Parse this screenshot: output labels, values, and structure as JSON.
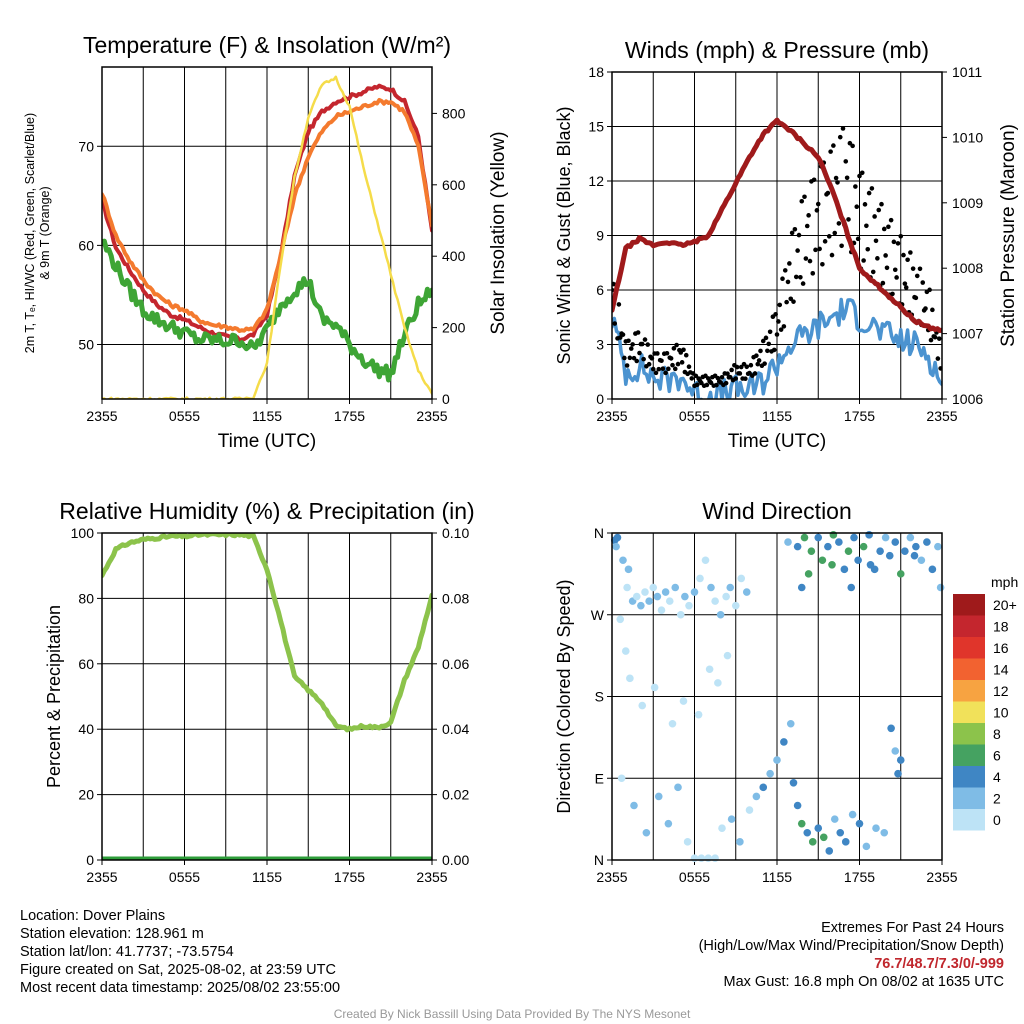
{
  "chart_data": [
    {
      "id": "temp",
      "type": "line",
      "title": "Temperature (F) & Insolation (W/m²)",
      "xlabel": "Time (UTC)",
      "ylabel_lines": [
        "2m T, Tₑ, HI/WC (Red, Green, Scarlet/Blue)",
        "& 9m T (Orange)"
      ],
      "ylabel2": "Solar Insolation (Yellow)",
      "xlim": [
        0,
        24
      ],
      "ylim": [
        44.5,
        78
      ],
      "y2lim": [
        0,
        930
      ],
      "xticks": [
        "2355",
        "0555",
        "1155",
        "1755",
        "2355"
      ],
      "yticks": [
        50,
        60,
        70
      ],
      "y2ticks": [
        0,
        200,
        400,
        600,
        800
      ],
      "x": [
        0,
        1,
        2,
        3,
        4,
        5,
        6,
        7,
        8,
        9,
        10,
        11,
        12,
        13,
        14,
        15,
        16,
        17,
        18,
        19,
        20,
        21,
        22,
        23,
        24
      ],
      "series": [
        {
          "name": "2m T",
          "color": "#c4262e",
          "values": [
            64.5,
            59.8,
            57.5,
            55.5,
            54.0,
            53.0,
            52.5,
            51.8,
            51.2,
            50.8,
            50.5,
            51.0,
            53.0,
            59.0,
            67.0,
            71.5,
            73.5,
            74.5,
            75.0,
            75.5,
            76.0,
            75.8,
            74.5,
            71.0,
            61.5
          ]
        },
        {
          "name": "9m T",
          "color": "#f47a2e",
          "values": [
            65.3,
            61.0,
            58.5,
            56.5,
            55.0,
            54.0,
            53.5,
            52.5,
            52.0,
            51.8,
            51.5,
            51.5,
            53.5,
            59.0,
            65.0,
            69.0,
            71.5,
            73.0,
            73.5,
            74.0,
            74.5,
            74.5,
            73.5,
            70.0,
            62.0
          ]
        },
        {
          "name": "Td",
          "color": "#3ea535",
          "values": [
            60.5,
            58.0,
            55.5,
            53.5,
            52.5,
            51.8,
            51.2,
            50.5,
            50.5,
            50.3,
            50.5,
            49.5,
            51.5,
            54.0,
            55.5,
            56.5,
            52.5,
            52.0,
            50.0,
            48.5,
            47.5,
            47.0,
            51.0,
            54.0,
            55.5
          ],
          "axis": "y"
        },
        {
          "name": "Solar Insolation",
          "color": "#f5dc4a",
          "values": [
            0,
            0,
            0,
            0,
            0,
            0,
            0,
            0,
            0,
            0,
            0,
            5,
            100,
            380,
            620,
            790,
            880,
            900,
            820,
            650,
            500,
            350,
            200,
            80,
            15
          ],
          "axis": "y2"
        }
      ]
    },
    {
      "id": "winds",
      "type": "line",
      "title": "Winds (mph) & Pressure (mb)",
      "xlabel": "Time (UTC)",
      "ylabel": "Sonic Wind & Gust (Blue, Black)",
      "ylabel2": "Station Pressure (Maroon)",
      "xlim": [
        0,
        24
      ],
      "ylim": [
        0,
        18
      ],
      "y2lim": [
        1006,
        1011
      ],
      "xticks": [
        "2355",
        "0555",
        "1155",
        "1755",
        "2355"
      ],
      "yticks": [
        0,
        3,
        6,
        9,
        12,
        15,
        18
      ],
      "y2ticks": [
        1006,
        1007,
        1008,
        1009,
        1010,
        1011
      ],
      "x": [
        0,
        1,
        2,
        3,
        4,
        5,
        6,
        7,
        8,
        9,
        10,
        11,
        12,
        13,
        14,
        15,
        16,
        17,
        18,
        19,
        20,
        21,
        22,
        23,
        24
      ],
      "series": [
        {
          "name": "Sonic Wind",
          "color": "#4b93d0",
          "values": [
            4.5,
            1.5,
            1.8,
            1.2,
            1.0,
            1.3,
            0.3,
            0.2,
            0.3,
            0.5,
            0.5,
            1.0,
            2.0,
            3.0,
            3.5,
            4.0,
            4.5,
            5.0,
            4.5,
            4.0,
            3.5,
            3.2,
            3.0,
            2.5,
            0.8
          ]
        },
        {
          "name": "Gust",
          "color": "#000000",
          "values": [
            6.0,
            2.5,
            3.0,
            2.0,
            2.0,
            2.5,
            1.0,
            1.0,
            1.0,
            1.5,
            1.5,
            2.5,
            4.0,
            7.0,
            9.0,
            10.0,
            11.0,
            12.0,
            10.0,
            9.0,
            8.0,
            7.0,
            6.0,
            5.0,
            2.0
          ]
        },
        {
          "name": "Station Pressure",
          "color": "#9f1a1b",
          "values": [
            1007.35,
            1008.3,
            1008.45,
            1008.35,
            1008.4,
            1008.35,
            1008.4,
            1008.5,
            1008.9,
            1009.3,
            1009.7,
            1010.05,
            1010.25,
            1010.1,
            1009.9,
            1009.7,
            1009.2,
            1008.6,
            1008.0,
            1007.8,
            1007.6,
            1007.4,
            1007.2,
            1007.1,
            1007.05
          ],
          "axis": "y2"
        }
      ]
    },
    {
      "id": "rh",
      "type": "line",
      "title": "Relative Humidity (%) & Precipitation (in)",
      "xlabel": "",
      "ylabel": "Percent & Precipitation",
      "xlim": [
        0,
        24
      ],
      "ylim": [
        0,
        100
      ],
      "y2lim": [
        0,
        0.1
      ],
      "xticks": [
        "2355",
        "0555",
        "1155",
        "1755",
        "2355"
      ],
      "yticks": [
        0,
        20,
        40,
        60,
        80,
        100
      ],
      "y2ticks": [
        "0.00",
        "0.02",
        "0.04",
        "0.06",
        "0.08",
        "0.10"
      ],
      "x": [
        0,
        1,
        2,
        3,
        4,
        5,
        6,
        7,
        8,
        9,
        10,
        11,
        12,
        13,
        14,
        15,
        16,
        17,
        18,
        19,
        20,
        21,
        22,
        23,
        24
      ],
      "series": [
        {
          "name": "Relative Humidity",
          "color": "#8cc34b",
          "values": [
            87,
            95,
            97,
            98,
            98.5,
            99,
            99,
            99.5,
            99.5,
            99.5,
            99.5,
            99,
            89,
            73,
            56,
            52,
            48,
            41,
            40,
            41,
            40.5,
            42,
            55,
            65,
            81
          ]
        },
        {
          "name": "Precipitation",
          "color": "#2e9d3a",
          "values": [
            0,
            0,
            0,
            0,
            0,
            0,
            0,
            0,
            0,
            0,
            0,
            0,
            0,
            0,
            0,
            0,
            0,
            0,
            0,
            0,
            0,
            0,
            0,
            0,
            0
          ],
          "axis": "y2"
        }
      ]
    },
    {
      "id": "dir",
      "type": "scatter",
      "title": "Wind Direction",
      "xlabel": "",
      "ylabel": "Direction (Colored By Speed)",
      "xlim": [
        0,
        24
      ],
      "ylim": [
        0,
        360
      ],
      "xticks": [
        "2355",
        "0555",
        "1155",
        "1755",
        "2355"
      ],
      "yticks": [
        "N",
        "E",
        "S",
        "W",
        "N"
      ],
      "colorbar": {
        "unit": "mph",
        "labels": [
          "20+",
          "18",
          "16",
          "14",
          "12",
          "10",
          "8",
          "6",
          "4",
          "2",
          "0"
        ],
        "colors": [
          "#9f1a1b",
          "#c4262e",
          "#e0352b",
          "#f26230",
          "#f7a341",
          "#f1e15a",
          "#8cc34b",
          "#45a261",
          "#3f86c4",
          "#7fbce6",
          "#bde3f6"
        ]
      },
      "points": [
        [
          0.2,
          352,
          4
        ],
        [
          0.4,
          355,
          4
        ],
        [
          0.3,
          345,
          2
        ],
        [
          0.8,
          330,
          2
        ],
        [
          1.2,
          320,
          2
        ],
        [
          1.1,
          300,
          0
        ],
        [
          1.5,
          285,
          2
        ],
        [
          1.8,
          290,
          0
        ],
        [
          2.1,
          280,
          2
        ],
        [
          2.4,
          295,
          0
        ],
        [
          2.7,
          285,
          2
        ],
        [
          3.0,
          300,
          0
        ],
        [
          3.3,
          290,
          2
        ],
        [
          3.6,
          275,
          0
        ],
        [
          3.9,
          295,
          2
        ],
        [
          4.2,
          285,
          0
        ],
        [
          4.6,
          300,
          2
        ],
        [
          5.0,
          270,
          0
        ],
        [
          5.3,
          290,
          2
        ],
        [
          5.6,
          280,
          0
        ],
        [
          6.0,
          295,
          2
        ],
        [
          6.4,
          310,
          0
        ],
        [
          6.8,
          330,
          0
        ],
        [
          7.2,
          300,
          2
        ],
        [
          7.5,
          285,
          0
        ],
        [
          7.9,
          270,
          2
        ],
        [
          8.3,
          290,
          0
        ],
        [
          8.6,
          300,
          2
        ],
        [
          9.0,
          280,
          0
        ],
        [
          9.4,
          310,
          0
        ],
        [
          9.8,
          295,
          2
        ],
        [
          0.6,
          265,
          0
        ],
        [
          1.0,
          230,
          0
        ],
        [
          1.3,
          200,
          0
        ],
        [
          2.2,
          170,
          0
        ],
        [
          3.1,
          190,
          0
        ],
        [
          4.4,
          150,
          0
        ],
        [
          5.2,
          175,
          0
        ],
        [
          6.3,
          160,
          0
        ],
        [
          7.1,
          210,
          0
        ],
        [
          7.7,
          195,
          0
        ],
        [
          8.4,
          225,
          0
        ],
        [
          0.7,
          90,
          0
        ],
        [
          1.6,
          60,
          2
        ],
        [
          2.5,
          30,
          2
        ],
        [
          3.4,
          70,
          2
        ],
        [
          4.1,
          40,
          2
        ],
        [
          4.8,
          80,
          2
        ],
        [
          5.5,
          20,
          0
        ],
        [
          6.0,
          2,
          0
        ],
        [
          6.5,
          2,
          0
        ],
        [
          7.0,
          2,
          0
        ],
        [
          7.5,
          2,
          0
        ],
        [
          8.0,
          35,
          0
        ],
        [
          8.7,
          45,
          2
        ],
        [
          9.3,
          20,
          2
        ],
        [
          10.0,
          55,
          0
        ],
        [
          10.5,
          70,
          2
        ],
        [
          11.0,
          80,
          4
        ],
        [
          11.5,
          95,
          2
        ],
        [
          12.0,
          110,
          2
        ],
        [
          12.5,
          130,
          4
        ],
        [
          13.0,
          150,
          2
        ],
        [
          13.2,
          85,
          4
        ],
        [
          13.5,
          60,
          4
        ],
        [
          13.8,
          40,
          6
        ],
        [
          14.2,
          30,
          4
        ],
        [
          14.6,
          20,
          6
        ],
        [
          15.0,
          35,
          4
        ],
        [
          15.4,
          25,
          6
        ],
        [
          15.8,
          10,
          4
        ],
        [
          16.2,
          45,
          2
        ],
        [
          16.6,
          30,
          4
        ],
        [
          17.0,
          20,
          4
        ],
        [
          17.5,
          50,
          2
        ],
        [
          18.0,
          40,
          4
        ],
        [
          18.5,
          15,
          2
        ],
        [
          19.2,
          35,
          2
        ],
        [
          19.8,
          30,
          2
        ],
        [
          20.3,
          145,
          4
        ],
        [
          20.6,
          120,
          2
        ],
        [
          20.8,
          95,
          4
        ],
        [
          21.0,
          110,
          4
        ],
        [
          12.8,
          350,
          2
        ],
        [
          13.5,
          345,
          4
        ],
        [
          14.0,
          355,
          6
        ],
        [
          14.5,
          340,
          6
        ],
        [
          15.0,
          355,
          4
        ],
        [
          15.3,
          330,
          6
        ],
        [
          15.7,
          345,
          4
        ],
        [
          16.1,
          358,
          6
        ],
        [
          16.5,
          350,
          4
        ],
        [
          16.9,
          320,
          4
        ],
        [
          17.2,
          340,
          6
        ],
        [
          17.6,
          355,
          4
        ],
        [
          17.9,
          330,
          4
        ],
        [
          18.3,
          345,
          6
        ],
        [
          18.7,
          358,
          4
        ],
        [
          19.1,
          320,
          4
        ],
        [
          19.5,
          340,
          4
        ],
        [
          19.9,
          355,
          2
        ],
        [
          20.2,
          335,
          4
        ],
        [
          20.6,
          350,
          4
        ],
        [
          21.0,
          315,
          6
        ],
        [
          21.3,
          340,
          4
        ],
        [
          21.7,
          355,
          2
        ],
        [
          22.1,
          345,
          4
        ],
        [
          22.5,
          330,
          2
        ],
        [
          22.9,
          350,
          4
        ],
        [
          23.3,
          320,
          4
        ],
        [
          23.7,
          345,
          2
        ],
        [
          23.9,
          300,
          2
        ],
        [
          13.8,
          300,
          4
        ],
        [
          14.3,
          315,
          6
        ],
        [
          16.0,
          325,
          6
        ],
        [
          17.4,
          300,
          4
        ],
        [
          18.8,
          325,
          4
        ],
        [
          22.0,
          335,
          4
        ]
      ]
    }
  ],
  "info": {
    "location": "Location: Dover Plains",
    "elevation": "Station elevation: 128.961 m",
    "latlon": "Station lat/lon: 41.7737; -73.5754",
    "created": "Figure created on Sat, 2025-08-02, at 23:59 UTC",
    "recent": "Most recent data timestamp: 2025/08/02 23:55:00"
  },
  "extremes": {
    "title": "Extremes For Past 24 Hours",
    "subtitle": "(High/Low/Max Wind/Precipitation/Snow Depth)",
    "values": "76.7/48.7/7.3/0/-999",
    "gust": "Max Gust: 16.8 mph On 08/02 at 1635 UTC"
  },
  "credit": "Created By Nick Bassill Using Data Provided By The NYS Mesonet"
}
